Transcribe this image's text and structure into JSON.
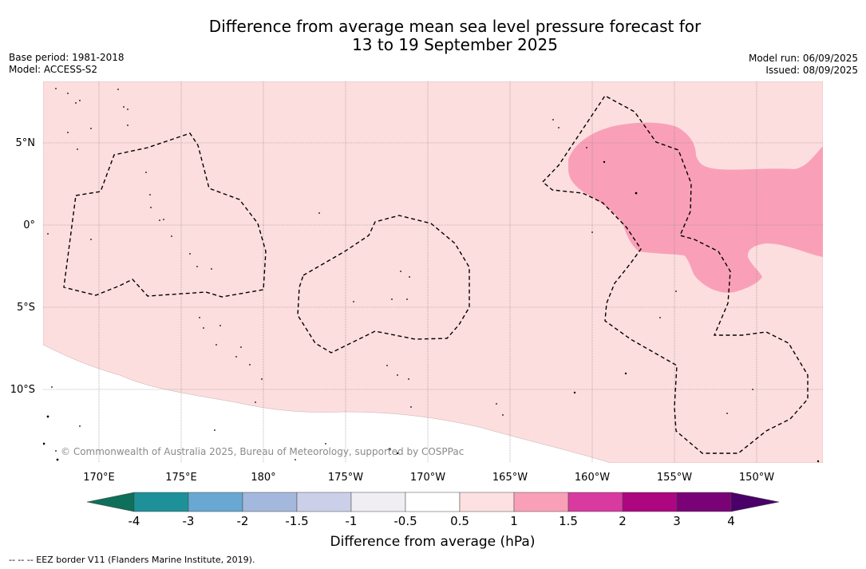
{
  "title": {
    "line1": "Difference from average mean sea level pressure forecast for",
    "line2": "13 to 19 September 2025"
  },
  "meta_left": {
    "base_period": "Base period: 1981-2018",
    "model": "Model: ACCESS-S2"
  },
  "meta_right": {
    "model_run": "Model run: 06/09/2025",
    "issued": "Issued: 08/09/2025"
  },
  "map": {
    "lat_labels": [
      "5°N",
      "0°",
      "5°S",
      "10°S"
    ],
    "lon_labels": [
      "170°E",
      "175°E",
      "180°",
      "175°W",
      "170°W",
      "165°W",
      "160°W",
      "155°W",
      "150°W"
    ],
    "copyright": "© Commonwealth of Australia 2025, Bureau of Meteorology, supported by COSPPac",
    "colors": {
      "light_pink": "#fddede",
      "pink": "#f9a0b8",
      "ocean": "#ffffff"
    }
  },
  "colorbar": {
    "title": "Difference from average (hPa)",
    "tick_labels": [
      "-4",
      "-3",
      "-2",
      "-1.5",
      "-1",
      "-0.5",
      "0.5",
      "1",
      "1.5",
      "2",
      "3",
      "4"
    ],
    "colors": [
      "#0e6f5a",
      "#1e9198",
      "#68a8d2",
      "#a3b8dc",
      "#cccfe8",
      "#f0eef2",
      "#ffffff",
      "#fde0e0",
      "#f9a0b8",
      "#d93a9f",
      "#ac0681",
      "#7a0277",
      "#4a0068"
    ]
  },
  "footnote": "--  --  -- EEZ border V11 (Flanders Marine Institute, 2019)."
}
